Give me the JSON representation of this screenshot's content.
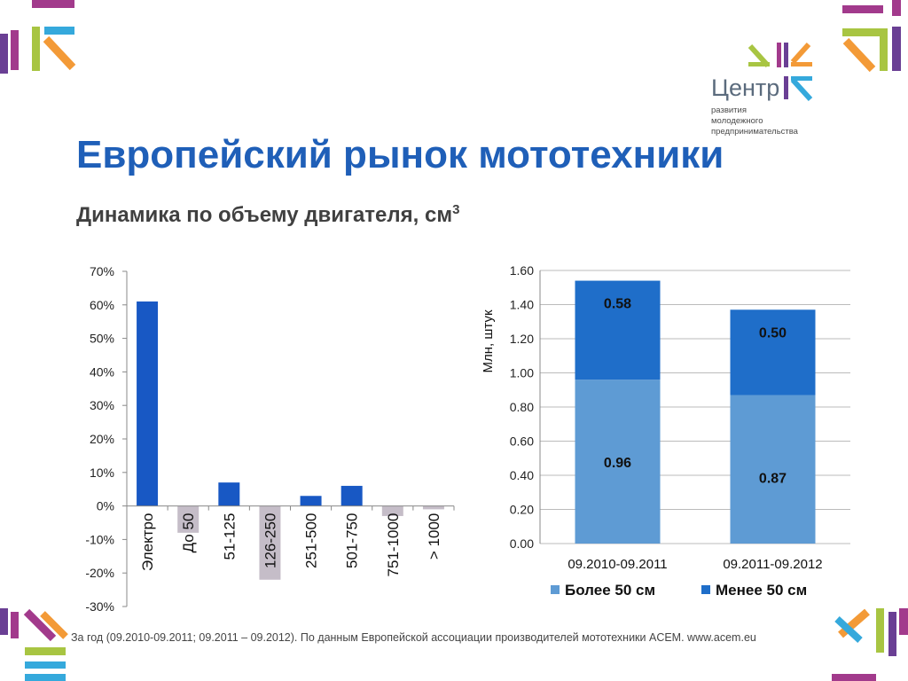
{
  "title": "Европейский рынок мототехники",
  "subtitle": "Динамика по объему двигателя, см",
  "subtitle_sup": "3",
  "logo": {
    "name": "Центр",
    "subtitle_lines": [
      "развития",
      "молодежного",
      "предпринимательства"
    ]
  },
  "footnote": "За год (09.2010-09.2011; 09.2011 – 09.2012). По данным Европейской ассоциации производителей мототехники ACEM. www.acem.eu",
  "colors": {
    "title": "#1f5fb8",
    "positive_bar": "#1858c4",
    "negative_bar": "#c5bdc8",
    "more_50": "#5e9bd4",
    "less_50": "#1f6ec9",
    "deco_magenta": "#a23a8c",
    "deco_green": "#a8c542",
    "deco_orange": "#f39a37",
    "deco_cyan": "#35a9dc",
    "deco_purple": "#6a3f94"
  },
  "chart_data": [
    {
      "type": "bar",
      "categories": [
        "Электро",
        "До 50",
        "51-125",
        "126-250",
        "251-500",
        "501-750",
        "751-1000",
        "> 1000"
      ],
      "values": [
        61,
        -8,
        7,
        -22,
        3,
        6,
        -3,
        -1
      ],
      "ylim": [
        -30,
        70
      ],
      "yticks": [
        "70%",
        "60%",
        "50%",
        "40%",
        "30%",
        "20%",
        "10%",
        "0%",
        "-10%",
        "-20%",
        "-30%"
      ],
      "ytick_values": [
        70,
        60,
        50,
        40,
        30,
        20,
        10,
        0,
        -10,
        -20,
        -30
      ],
      "grid": false
    },
    {
      "type": "bar",
      "stacked": true,
      "categories": [
        "09.2010-09.2011",
        "09.2011-09.2012"
      ],
      "series": [
        {
          "name": "Более 50 см",
          "values": [
            0.96,
            0.87
          ],
          "labels": [
            "0.96",
            "0.87"
          ]
        },
        {
          "name": "Менее 50 см",
          "values": [
            0.58,
            0.5
          ],
          "labels": [
            "0.58",
            "0.50"
          ]
        }
      ],
      "ylabel": "Млн, штук",
      "ylim": [
        0,
        1.6
      ],
      "yticks": [
        "1.60",
        "1.40",
        "1.20",
        "1.00",
        "0.80",
        "0.60",
        "0.40",
        "0.20",
        "0.00"
      ],
      "ytick_values": [
        1.6,
        1.4,
        1.2,
        1.0,
        0.8,
        0.6,
        0.4,
        0.2,
        0.0
      ],
      "grid": true,
      "legend": "bottom"
    }
  ]
}
